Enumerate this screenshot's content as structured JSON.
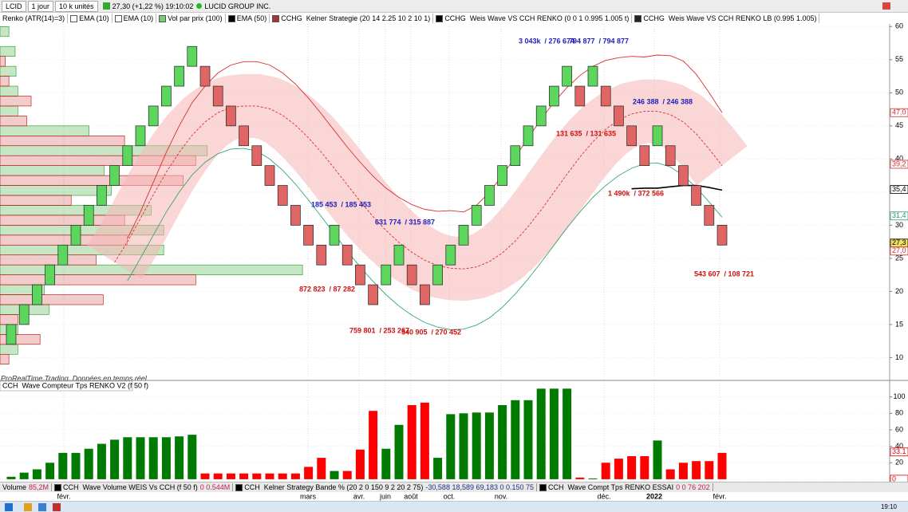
{
  "toolbar": {
    "symbol": "LCID",
    "period": "1 jour",
    "units": "10 k unités",
    "quote": "27,30 (+1,22 %) 19:10:02",
    "name": "LUCID GROUP INC."
  },
  "indicators": [
    "Renko (ATR(14)=3)",
    "EMA (10)",
    "EMA (10)",
    "Vol par prix (100)",
    "EMA (50)",
    "CCHG  Kelner Strategie (20 14 2.25 10 2 10 1)",
    "CCHG  Weis Wave VS CCH RENKO (0 0 1 0.995 1.005 t)",
    "CCHG  Weis Wave VS CCH RENKO LB (0.995 1.005)"
  ],
  "source_note": "ProRealTime Trading  Données en temps réel",
  "chart_data": [
    {
      "type": "renko",
      "open": [
        12,
        15,
        18,
        21,
        24,
        27,
        30,
        33,
        36,
        39,
        42,
        45,
        48,
        51,
        54,
        54,
        51,
        48,
        45,
        42,
        39,
        36,
        33,
        30,
        27,
        27,
        27,
        24,
        21,
        21,
        24,
        24,
        21,
        21,
        24,
        27,
        30,
        33,
        36,
        39,
        42,
        45,
        48,
        51,
        51,
        51,
        51,
        48,
        45,
        42,
        42,
        42,
        39,
        36,
        33,
        30
      ],
      "close": [
        15,
        18,
        21,
        24,
        27,
        30,
        33,
        36,
        39,
        42,
        45,
        48,
        51,
        54,
        57,
        51,
        48,
        45,
        42,
        39,
        36,
        33,
        30,
        27,
        24,
        30,
        24,
        21,
        18,
        24,
        27,
        21,
        18,
        24,
        27,
        30,
        33,
        36,
        39,
        42,
        45,
        48,
        51,
        54,
        48,
        54,
        48,
        45,
        42,
        39,
        45,
        39,
        36,
        33,
        30,
        27
      ],
      "up_color": "#5cd65c",
      "down_color": "#e06666",
      "ylim": [
        7.4,
        60.4
      ],
      "yticks": [
        10,
        15,
        20,
        25,
        30,
        35,
        40,
        45,
        50,
        55,
        60
      ],
      "grid": true,
      "lines": [
        {
          "color": "#d83030",
          "dashed": false,
          "values": [
            null,
            null,
            null,
            null,
            null,
            null,
            null,
            null,
            null,
            28,
            32,
            36.5,
            41,
            45,
            48.5,
            51,
            53,
            54.2,
            54.7,
            54.7,
            54.2,
            53,
            51.3,
            49.2,
            46.8,
            44.3,
            41.8,
            39.5,
            37.4,
            35.6,
            34.2,
            33.1,
            32.4,
            32.1,
            32.2,
            32,
            33,
            35,
            37.5,
            40.3,
            43.2,
            46,
            48.6,
            50.8,
            52.6,
            54,
            54.9,
            55.3,
            55.5,
            55.4,
            55.7,
            55.6,
            54.8,
            52.8,
            50,
            47
          ]
        },
        {
          "color": "#d83030",
          "dashed": true,
          "band_color": "#f5b5b5",
          "values": [
            null,
            null,
            null,
            null,
            null,
            null,
            null,
            null,
            24.4,
            27.5,
            31,
            34.6,
            38,
            41,
            43.6,
            45.6,
            47,
            47.8,
            48,
            48,
            47.6,
            46.6,
            45.1,
            43.2,
            41,
            38.6,
            36.1,
            33.6,
            31.3,
            29.2,
            27.4,
            25.9,
            24.7,
            23.9,
            23.5,
            23.4,
            23.7,
            24.5,
            25.8,
            27.6,
            29.8,
            32.3,
            35,
            37.7,
            40.3,
            42.6,
            44.5,
            45.9,
            46.8,
            47.2,
            47.2,
            46.7,
            45.6,
            43.8,
            41.5,
            39
          ]
        },
        {
          "color": "#3aa57a",
          "dashed": false,
          "values": [
            null,
            null,
            null,
            null,
            null,
            null,
            null,
            null,
            null,
            21.6,
            25,
            28.5,
            32,
            35,
            37.6,
            39.5,
            40.8,
            41.5,
            41.6,
            41.2,
            40,
            38.3,
            36.2,
            33.8,
            31.3,
            28.7,
            26.1,
            23.7,
            21.5,
            19.5,
            17.8,
            16.4,
            15.3,
            14.6,
            14.2,
            14.3,
            14.9,
            16,
            17.6,
            19.6,
            21.9,
            24.4,
            27,
            29.6,
            32,
            34.2,
            36,
            37.5,
            38.6,
            39.3,
            39.4,
            38.8,
            37.5,
            35.7,
            33.5,
            31.2
          ]
        },
        {
          "color": "#000000",
          "dashed": false,
          "values": [
            null,
            null,
            null,
            null,
            null,
            null,
            null,
            null,
            null,
            null,
            null,
            null,
            null,
            null,
            null,
            null,
            null,
            null,
            null,
            null,
            null,
            null,
            null,
            null,
            null,
            null,
            null,
            null,
            null,
            null,
            null,
            null,
            null,
            null,
            null,
            null,
            null,
            null,
            null,
            null,
            null,
            null,
            null,
            null,
            null,
            null,
            null,
            null,
            35.5,
            35.6,
            35.6,
            35.8,
            36,
            36,
            35.7,
            35.3
          ]
        }
      ],
      "volume_profile": {
        "bins": [
          9,
          12,
          15,
          18,
          21,
          24,
          27,
          30,
          33,
          36,
          39,
          42,
          45,
          48,
          51,
          54,
          57,
          60
        ],
        "buy": [
          2,
          2,
          5.5,
          5,
          34,
          18.4,
          18.4,
          17,
          12.5,
          11.7,
          23.3,
          10,
          2,
          2,
          1.8,
          1.7,
          1
        ],
        "sell": [
          1,
          4.5,
          2,
          11.6,
          22,
          10.8,
          14.3,
          14,
          8,
          20.6,
          22,
          14,
          3,
          3.5,
          1,
          0.6,
          0
        ],
        "xlim": [
          0,
          100
        ],
        "buy_color": "#1a9a1a",
        "sell_color": "#c00000"
      },
      "annotations": [
        {
          "text": "3 043k  / 276 674",
          "color": "#2020c0"
        },
        {
          "text": "794 877  / 794 877",
          "color": "#2020c0"
        },
        {
          "text": "246 388  / 246 388",
          "color": "#2020c0"
        },
        {
          "text": "131 635  / 131 635",
          "color": "#d01010"
        },
        {
          "text": "185 453  / 185 453",
          "color": "#2020c0"
        },
        {
          "text": "631 774  / 315 887",
          "color": "#2020c0"
        },
        {
          "text": "1 490k  / 372 566",
          "color": "#d01010"
        },
        {
          "text": "872 823  / 87 282",
          "color": "#d01010"
        },
        {
          "text": "759 801  / 253 267",
          "color": "#d01010"
        },
        {
          "text": "540 905  / 270 452",
          "color": "#d01010"
        },
        {
          "text": "543 607  / 108 721",
          "color": "#d01010"
        }
      ],
      "price_markers": [
        {
          "value": 47,
          "label": "47,0",
          "color": "#d03030",
          "background": "#ffffff"
        },
        {
          "value": 39.2,
          "label": "39,2",
          "color": "#d03030",
          "background": "#ffffff"
        },
        {
          "value": 35.4,
          "label": "35,4",
          "color": "#000000",
          "background": "#ffffff"
        },
        {
          "value": 31.4,
          "label": "31,4",
          "color": "#2a9a6a",
          "background": "#ffffff"
        },
        {
          "value": 27.3,
          "label": "27,3",
          "color": "#000000",
          "background": "#f0e060"
        },
        {
          "value": 27,
          "label": "27,0",
          "color": "#d03030",
          "background": "#ffffff"
        }
      ]
    },
    {
      "type": "bar",
      "title": "CCH  Wave Compteur Tps RENKO V2 (f 50 f)",
      "values": [
        3,
        8,
        12,
        20,
        32,
        32,
        37,
        43,
        48,
        51,
        51,
        51,
        51,
        52,
        54,
        7,
        7,
        7,
        7,
        7,
        7,
        7,
        7,
        15,
        26,
        10,
        10,
        36,
        83,
        37,
        66,
        90,
        93,
        26,
        79,
        80,
        81,
        81,
        90,
        96,
        96,
        110,
        110,
        110,
        2,
        1,
        20,
        25,
        28,
        28,
        47,
        12,
        20,
        22,
        22,
        32
      ],
      "up_color": "#007a00",
      "down_color": "#ff0000",
      "ylim": [
        -3,
        120
      ],
      "yticks": [
        0,
        20,
        40,
        60,
        80,
        100
      ],
      "markers": [
        {
          "value": 33.1,
          "color": "#e00000"
        },
        {
          "value": 0,
          "color": "#e00000"
        }
      ]
    }
  ],
  "status_bar": [
    {
      "label": "Volume",
      "value": "85,2M"
    },
    {
      "label": "CCH  Wave Volume WEIS Vs CCH (f 50 f)",
      "value": "0 0.544M"
    },
    {
      "label": "CCH  Kelner Strategy Bande % (20 2 0 150 9 2 20 2 75)",
      "value": "-30,588 18,589 69,183 0 0.150 75"
    },
    {
      "label": "CCH  Wave Compt Tps RENKO ESSAI",
      "value": "0 0 76 202"
    }
  ],
  "time_labels": [
    "févr.",
    "mars",
    "avr.",
    "juin",
    "août",
    "oct.",
    "nov.",
    "déc.",
    "2022",
    "févr."
  ],
  "taskbar": {
    "clock": "19:10"
  }
}
